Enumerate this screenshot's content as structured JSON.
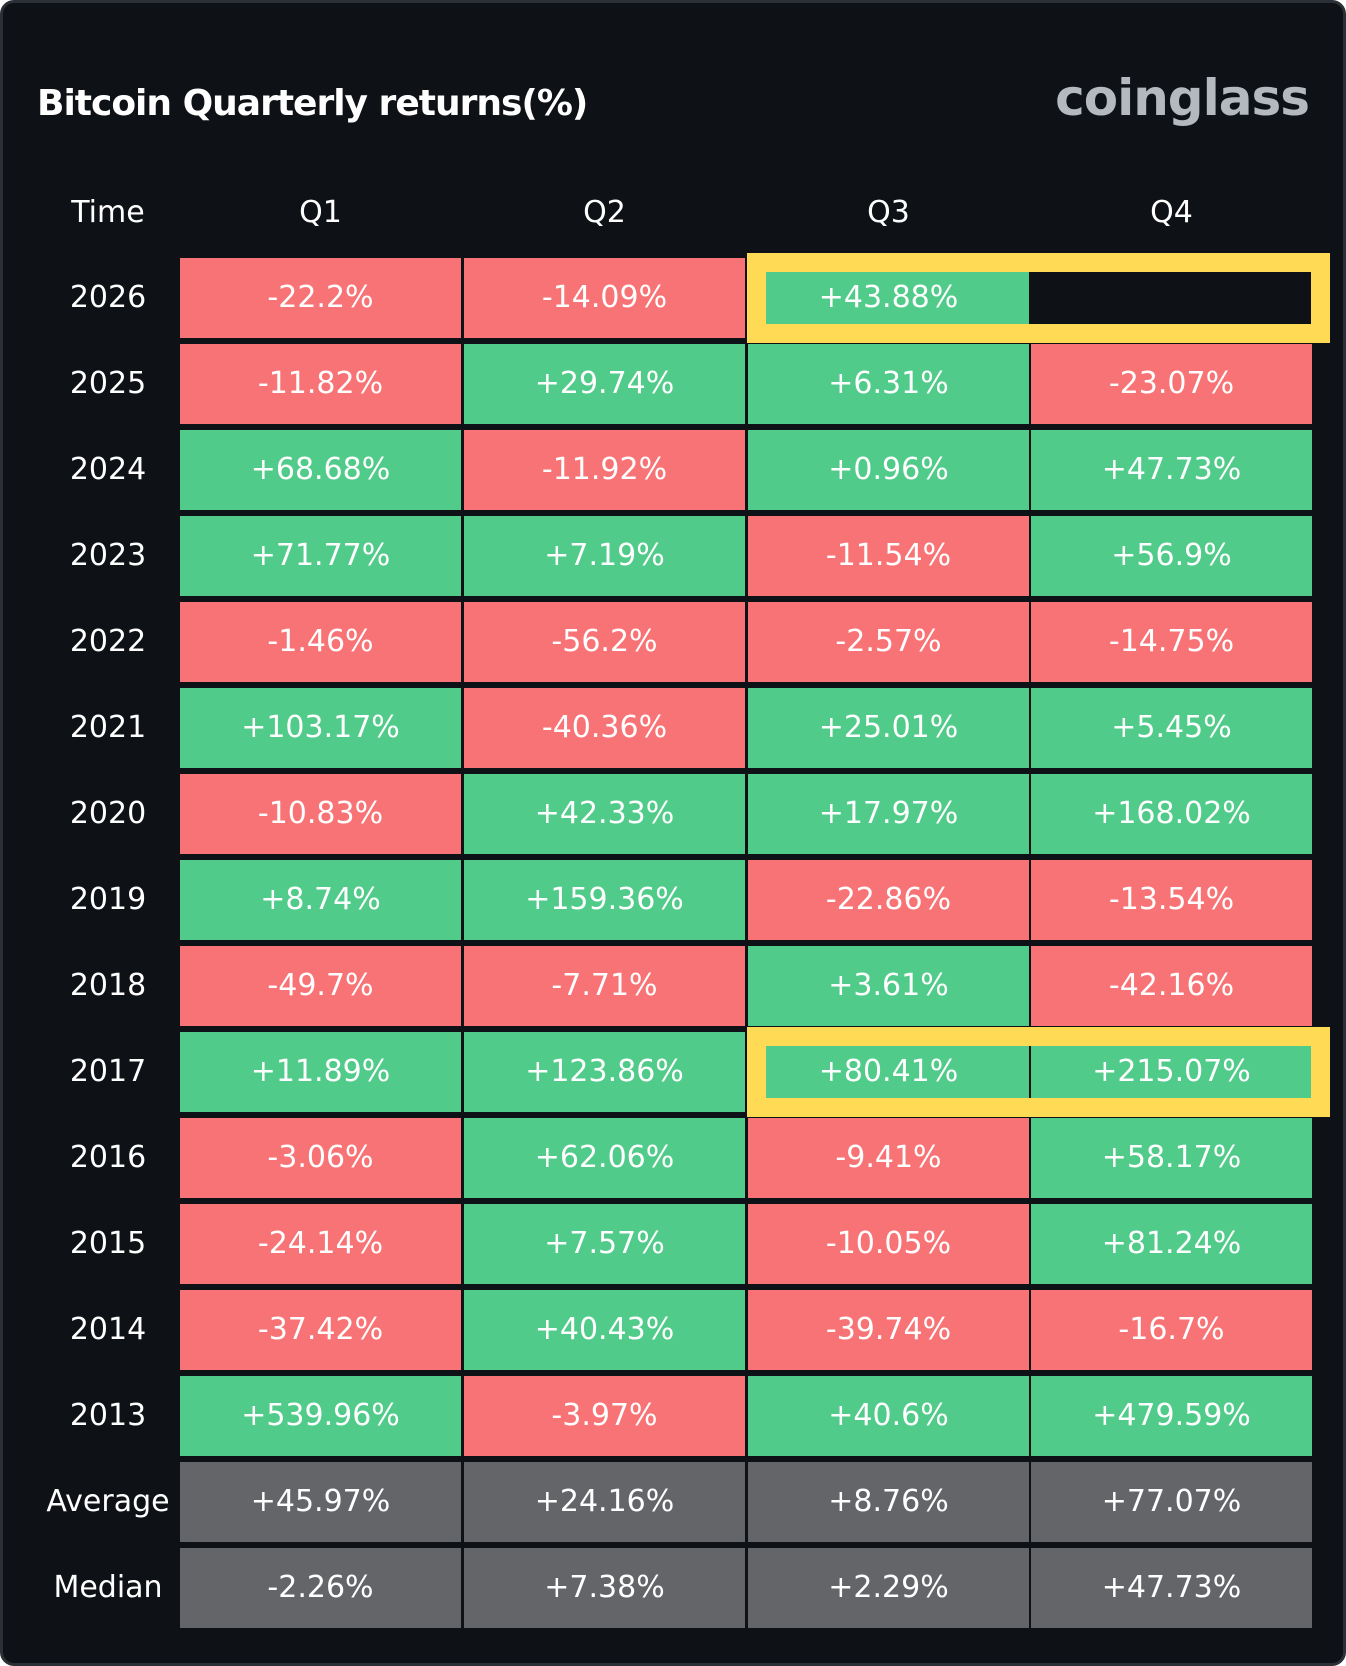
{
  "title": "Bitcoin Quarterly returns(%)",
  "brand": "coinglass",
  "colors": {
    "background": "#0e1116",
    "positive": "#51cb8a",
    "negative": "#f87375",
    "summary": "#636569",
    "highlight": "#ffda55"
  },
  "chart_data": {
    "type": "table",
    "columns": [
      "Time",
      "Q1",
      "Q2",
      "Q3",
      "Q4"
    ],
    "rows": [
      {
        "label": "2026",
        "values": [
          "-22.2%",
          "-14.09%",
          "+43.88%",
          ""
        ]
      },
      {
        "label": "2025",
        "values": [
          "-11.82%",
          "+29.74%",
          "+6.31%",
          "-23.07%"
        ]
      },
      {
        "label": "2024",
        "values": [
          "+68.68%",
          "-11.92%",
          "+0.96%",
          "+47.73%"
        ]
      },
      {
        "label": "2023",
        "values": [
          "+71.77%",
          "+7.19%",
          "-11.54%",
          "+56.9%"
        ]
      },
      {
        "label": "2022",
        "values": [
          "-1.46%",
          "-56.2%",
          "-2.57%",
          "-14.75%"
        ]
      },
      {
        "label": "2021",
        "values": [
          "+103.17%",
          "-40.36%",
          "+25.01%",
          "+5.45%"
        ]
      },
      {
        "label": "2020",
        "values": [
          "-10.83%",
          "+42.33%",
          "+17.97%",
          "+168.02%"
        ]
      },
      {
        "label": "2019",
        "values": [
          "+8.74%",
          "+159.36%",
          "-22.86%",
          "-13.54%"
        ]
      },
      {
        "label": "2018",
        "values": [
          "-49.7%",
          "-7.71%",
          "+3.61%",
          "-42.16%"
        ]
      },
      {
        "label": "2017",
        "values": [
          "+11.89%",
          "+123.86%",
          "+80.41%",
          "+215.07%"
        ]
      },
      {
        "label": "2016",
        "values": [
          "-3.06%",
          "+62.06%",
          "-9.41%",
          "+58.17%"
        ]
      },
      {
        "label": "2015",
        "values": [
          "-24.14%",
          "+7.57%",
          "-10.05%",
          "+81.24%"
        ]
      },
      {
        "label": "2014",
        "values": [
          "-37.42%",
          "+40.43%",
          "-39.74%",
          "-16.7%"
        ]
      },
      {
        "label": "2013",
        "values": [
          "+539.96%",
          "-3.97%",
          "+40.6%",
          "+479.59%"
        ]
      }
    ],
    "summary_rows": [
      {
        "label": "Average",
        "values": [
          "+45.97%",
          "+24.16%",
          "+8.76%",
          "+77.07%"
        ]
      },
      {
        "label": "Median",
        "values": [
          "-2.26%",
          "+7.38%",
          "+2.29%",
          "+47.73%"
        ]
      }
    ],
    "highlights": [
      {
        "row": "2026",
        "columns": [
          "Q3",
          "Q4"
        ]
      },
      {
        "row": "2017",
        "columns": [
          "Q3",
          "Q4"
        ]
      }
    ]
  }
}
